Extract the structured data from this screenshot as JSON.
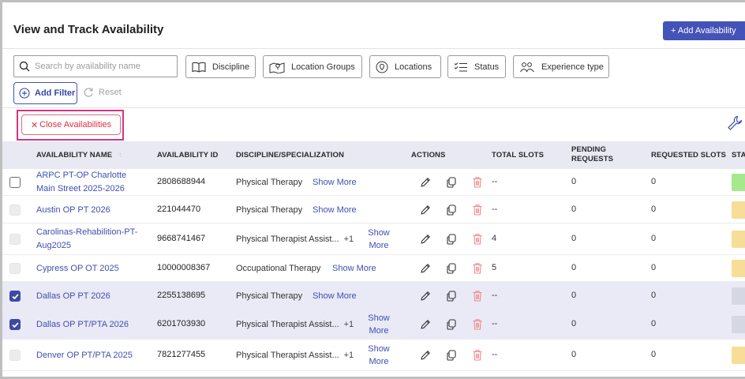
{
  "header": {
    "title": "View and Track Availability",
    "add_button": "+ Add Availability"
  },
  "filters": {
    "search_placeholder": "Search by availability name",
    "chips": [
      {
        "label": "Discipline",
        "icon": "book-open-icon"
      },
      {
        "label": "Location Groups",
        "icon": "map-icon"
      },
      {
        "label": "Locations",
        "icon": "map-pin-icon"
      },
      {
        "label": "Status",
        "icon": "checklist-icon"
      },
      {
        "label": "Experience type",
        "icon": "users-icon"
      }
    ],
    "add_filter": "Add Filter",
    "reset": "Reset"
  },
  "close_availabilities": "Close Availabilities",
  "table": {
    "columns": {
      "name": "AVAILABILITY NAME",
      "id": "AVAILABILITY ID",
      "discipline": "DISCIPLINE/SPECIALIZATION",
      "actions": "ACTIONS",
      "total_slots": "TOTAL SLOTS",
      "pending": "PENDING REQUESTS",
      "requested": "REQUESTED SLOTS",
      "status": "STA"
    },
    "show_more_label": "Show More",
    "rows": [
      {
        "name": "ARPC PT-OP Charlotte Main Street 2025-2026",
        "id": "2808688944",
        "discipline": "Physical Therapy",
        "extra": "",
        "total_slots": "--",
        "pending": "0",
        "requested": "0",
        "checkbox": "unchecked",
        "status_color": "#a5e88d"
      },
      {
        "name": "Austin OP PT 2026",
        "id": "221044470",
        "discipline": "Physical Therapy",
        "extra": "",
        "total_slots": "--",
        "pending": "0",
        "requested": "0",
        "checkbox": "disabled",
        "status_color": "#f7dd97"
      },
      {
        "name": "Carolinas-Rehabilition-PT-Aug2025",
        "id": "9668741467",
        "discipline": "Physical Therapist Assist...",
        "extra": "+1",
        "total_slots": "4",
        "pending": "0",
        "requested": "0",
        "checkbox": "disabled",
        "status_color": "#f7dd97"
      },
      {
        "name": "Cypress OP OT 2025",
        "id": "10000008367",
        "discipline": "Occupational Therapy",
        "extra": "",
        "total_slots": "5",
        "pending": "0",
        "requested": "0",
        "checkbox": "disabled",
        "status_color": "#f7dd97"
      },
      {
        "name": "Dallas OP PT 2026",
        "id": "2255138695",
        "discipline": "Physical Therapy",
        "extra": "",
        "total_slots": "--",
        "pending": "0",
        "requested": "0",
        "checkbox": "checked",
        "status_color": "#d5d8e2"
      },
      {
        "name": "Dallas OP PT/PTA 2026",
        "id": "6201703930",
        "discipline": "Physical Therapist Assist...",
        "extra": "+1",
        "total_slots": "--",
        "pending": "0",
        "requested": "0",
        "checkbox": "checked",
        "status_color": "#d5d8e2"
      },
      {
        "name": "Denver OP PT/PTA 2025",
        "id": "7821277455",
        "discipline": "Physical Therapist Assist...",
        "extra": "+1",
        "total_slots": "--",
        "pending": "0",
        "requested": "0",
        "checkbox": "disabled",
        "status_color": "#f7dd97"
      }
    ]
  },
  "colors": {
    "primary": "#4453b8",
    "link": "#3f4fb0",
    "danger": "#e0303f",
    "highlight": "#d63384",
    "header_bg": "#e8e9f3"
  }
}
